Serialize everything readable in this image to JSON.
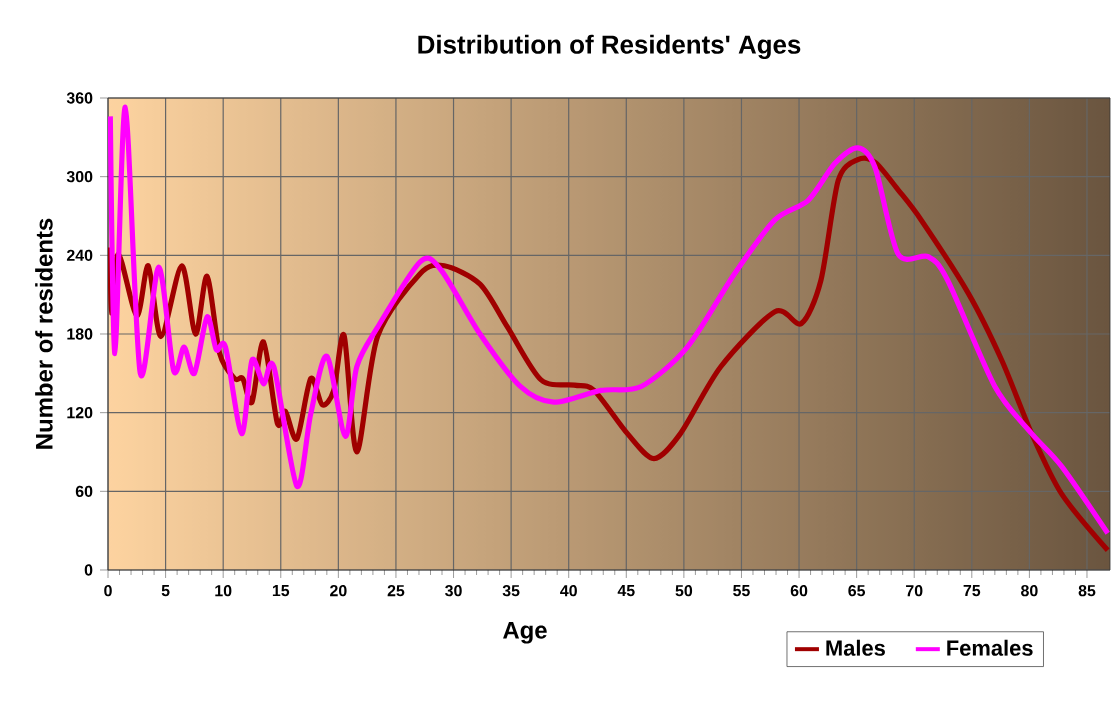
{
  "chart_data": {
    "type": "line",
    "title": "Distribution of Residents' Ages",
    "xlabel": "Age",
    "ylabel": "Number of residents",
    "xlim": [
      0,
      87
    ],
    "ylim": [
      0,
      360
    ],
    "xticks": [
      0,
      5,
      10,
      15,
      20,
      25,
      30,
      35,
      40,
      45,
      50,
      55,
      60,
      65,
      70,
      75,
      80,
      85
    ],
    "yticks": [
      0,
      60,
      120,
      180,
      240,
      300,
      360
    ],
    "grid": true,
    "legend": "bottom right",
    "series": [
      {
        "name": "Males",
        "color": "#a00000",
        "x": [
          0.2,
          0.3,
          0.9,
          2.5,
          3.5,
          4.6,
          6.4,
          7.6,
          8.6,
          9.7,
          11,
          11.7,
          12.5,
          13.5,
          14.7,
          15.4,
          16.4,
          17.6,
          18.6,
          19.6,
          20.5,
          21.6,
          23.4,
          27.1,
          29.2,
          32.3,
          34.7,
          37.6,
          40.5,
          42.2,
          45.1,
          47.4,
          49.7,
          53.2,
          57.9,
          60.2,
          61.9,
          63.4,
          65.1,
          66.6,
          68.6,
          70.6,
          74.7,
          77.6,
          80.2,
          82.8,
          86.8
        ],
        "values": [
          246,
          196,
          241,
          194,
          232,
          178,
          232,
          180,
          224,
          165,
          146,
          146,
          128,
          174,
          112,
          121,
          100,
          146,
          126,
          137,
          179,
          90,
          178,
          226,
          232,
          218,
          185,
          145,
          141,
          137,
          104,
          85,
          104,
          155,
          197,
          188,
          221,
          297,
          313,
          311,
          290,
          267,
          211,
          160,
          104,
          58,
          15
        ]
      },
      {
        "name": "Females",
        "color": "#ff00ff",
        "x": [
          0.2,
          0.6,
          1.5,
          2.8,
          4.4,
          5.7,
          6.6,
          7.5,
          8.6,
          9.4,
          10.2,
          11.6,
          12.5,
          13.5,
          14.4,
          16.4,
          17.6,
          19,
          20.6,
          21.6,
          23.4,
          27.1,
          28.9,
          32.3,
          35.8,
          38.7,
          42.8,
          46.3,
          50.3,
          54.4,
          57.9,
          60.8,
          63.1,
          65.1,
          66.6,
          68.6,
          71.2,
          72.9,
          77,
          80.2,
          82.8,
          86.8
        ],
        "values": [
          346,
          165,
          353,
          150,
          231,
          152,
          170,
          150,
          193,
          168,
          170,
          104,
          160,
          142,
          155,
          64,
          119,
          163,
          102,
          155,
          185,
          235,
          229,
          180,
          140,
          128,
          137,
          140,
          170,
          226,
          267,
          282,
          310,
          322,
          307,
          241,
          239,
          221,
          140,
          104,
          79,
          28
        ]
      }
    ]
  }
}
